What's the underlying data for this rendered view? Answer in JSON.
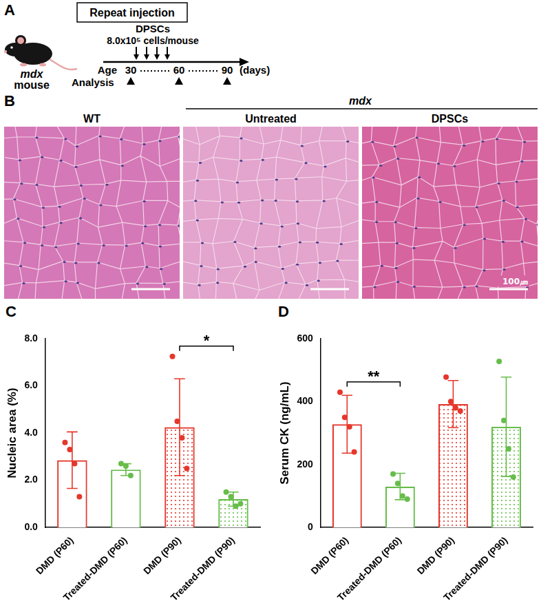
{
  "panel_A": {
    "letter": "A",
    "title": "Repeat injection",
    "subject": "mdx",
    "subject_suffix": "mouse",
    "treatment": "DPSCs",
    "dose": "8.0x10⁵ cells/mouse",
    "age_label": "Age",
    "ages": [
      30,
      60,
      90
    ],
    "age_unit": "(days)",
    "analysis_label": "Analysis"
  },
  "panel_B": {
    "letter": "B",
    "group_head": "mdx",
    "columns": [
      "WT",
      "Untreated",
      "DPSCs"
    ],
    "scale_bar": "100㎛"
  },
  "chart_data": [
    {
      "letter": "C",
      "type": "bar",
      "ylabel": "Nucleic area (%)",
      "categories": [
        "DMD (P60)",
        "Treated-DMD (P60)",
        "DMD (P90)",
        "Treated-DMD (P90)"
      ],
      "values": [
        2.85,
        2.45,
        4.25,
        1.2
      ],
      "errors": [
        1.2,
        0.25,
        2.05,
        0.3
      ],
      "points": [
        [
          3.6,
          3.3,
          2.7,
          1.3
        ],
        [
          2.7,
          2.6,
          2.2
        ],
        [
          7.25,
          4.5,
          3.8,
          2.5
        ],
        [
          1.5,
          1.3,
          0.9,
          1.0
        ]
      ],
      "colors": [
        "#e5372b",
        "#66bd4a",
        "#e5372b",
        "#66bd4a"
      ],
      "ylim": [
        0,
        8
      ],
      "yticks": [
        {
          "value": 0,
          "label": "0.0"
        },
        {
          "value": 2,
          "label": "2.0"
        },
        {
          "value": 4,
          "label": "4.0"
        },
        {
          "value": 6,
          "label": "6.0"
        },
        {
          "value": 8,
          "label": "8.0"
        }
      ],
      "grid": false,
      "annotations": [
        {
          "text": "*",
          "between": [
            2,
            3
          ]
        }
      ]
    },
    {
      "letter": "D",
      "type": "bar",
      "ylabel": "Serum CK (ng/mL)",
      "categories": [
        "DMD (P60)",
        "Treated-DMD (P60)",
        "DMD (P90)",
        "Treated-DMD (P90)"
      ],
      "values": [
        328,
        130,
        392,
        320
      ],
      "errors": [
        92,
        42,
        75,
        158
      ],
      "points": [
        [
          430,
          350,
          320,
          240
        ],
        [
          170,
          140,
          100,
          90
        ],
        [
          478,
          400,
          380,
          370
        ],
        [
          528,
          340,
          250,
          160
        ]
      ],
      "colors": [
        "#e5372b",
        "#66bd4a",
        "#e5372b",
        "#66bd4a"
      ],
      "ylim": [
        0,
        600
      ],
      "yticks": [
        0,
        200,
        400,
        600
      ],
      "grid": false,
      "annotations": [
        {
          "text": "**",
          "between": [
            0,
            1
          ]
        }
      ]
    }
  ]
}
